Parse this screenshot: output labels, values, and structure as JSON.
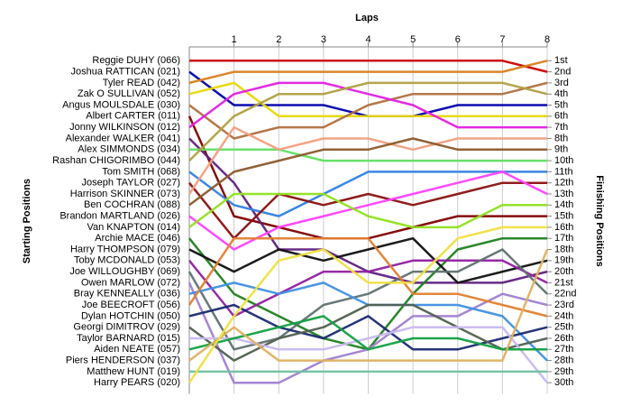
{
  "chart_data": {
    "type": "bump",
    "title": "Laps",
    "y_label": "Starting Positions",
    "y2_label": "Finishing Positions",
    "x": [
      0,
      1,
      2,
      3,
      4,
      5,
      6,
      7,
      8
    ],
    "xlim": [
      0,
      8
    ],
    "xticks": [
      1,
      2,
      3,
      4,
      5,
      6,
      7,
      8
    ],
    "ylim": [
      0,
      31
    ],
    "y2lim": [
      0,
      31
    ],
    "y_inverted": true,
    "grid": true,
    "y2ticks": [
      {
        "value": 1,
        "label": "1st"
      },
      {
        "value": 2,
        "label": "2nd"
      },
      {
        "value": 3,
        "label": "3rd"
      },
      {
        "value": 4,
        "label": "4th"
      },
      {
        "value": 5,
        "label": "5th"
      },
      {
        "value": 6,
        "label": "6th"
      },
      {
        "value": 7,
        "label": "7th"
      },
      {
        "value": 8,
        "label": "8th"
      },
      {
        "value": 9,
        "label": "9th"
      },
      {
        "value": 10,
        "label": "10th"
      },
      {
        "value": 11,
        "label": "11th"
      },
      {
        "value": 12,
        "label": "12th"
      },
      {
        "value": 13,
        "label": "13th"
      },
      {
        "value": 14,
        "label": "14th"
      },
      {
        "value": 15,
        "label": "15th"
      },
      {
        "value": 16,
        "label": "16th"
      },
      {
        "value": 17,
        "label": "17th"
      },
      {
        "value": 18,
        "label": "18th"
      },
      {
        "value": 19,
        "label": "19th"
      },
      {
        "value": 20,
        "label": "20th"
      },
      {
        "value": 21,
        "label": "21st"
      },
      {
        "value": 22,
        "label": "22nd"
      },
      {
        "value": 23,
        "label": "23rd"
      },
      {
        "value": 24,
        "label": "24th"
      },
      {
        "value": 25,
        "label": "25th"
      },
      {
        "value": 26,
        "label": "26th"
      },
      {
        "value": 27,
        "label": "27th"
      },
      {
        "value": 28,
        "label": "28th"
      },
      {
        "value": 29,
        "label": "29th"
      },
      {
        "value": 30,
        "label": "30th"
      }
    ],
    "series": [
      {
        "name": "Reggie DUHY (066)",
        "color": "#cc0000",
        "values": [
          1,
          1,
          1,
          1,
          1,
          1,
          1,
          1,
          2
        ]
      },
      {
        "name": "Joshua RATTICAN (021)",
        "color": "#0000aa",
        "values": [
          2,
          5,
          5,
          5,
          6,
          6,
          5,
          5,
          5
        ]
      },
      {
        "name": "Tyler READ (042)",
        "color": "#d98020",
        "values": [
          3,
          2,
          2,
          2,
          2,
          2,
          2,
          2,
          1
        ]
      },
      {
        "name": "Zak O SULLIVAN (052)",
        "color": "#e8d800",
        "values": [
          4,
          3,
          6,
          6,
          6,
          6,
          6,
          6,
          6
        ]
      },
      {
        "name": "Angus MOULSDALE (030)",
        "color": "#b07040",
        "values": [
          5,
          8,
          7,
          7,
          5,
          4,
          4,
          4,
          3
        ]
      },
      {
        "name": "Albert CARTER (011)",
        "color": "#800000",
        "values": [
          6,
          15,
          16,
          17,
          17,
          16,
          15,
          15,
          15
        ]
      },
      {
        "name": "Jonny WILKINSON (012)",
        "color": "#e020e0",
        "values": [
          7,
          4,
          3,
          3,
          4,
          5,
          7,
          7,
          7
        ]
      },
      {
        "name": "Alexander WALKER (041)",
        "color": "#602080",
        "values": [
          8,
          12,
          18,
          18,
          20,
          21,
          21,
          21,
          20
        ]
      },
      {
        "name": "Alex SIMMONDS (034)",
        "color": "#60e060",
        "values": [
          9,
          9,
          9,
          10,
          10,
          10,
          10,
          10,
          10
        ]
      },
      {
        "name": "Rashan CHIGORIMBO (044)",
        "color": "#b0a040",
        "values": [
          10,
          6,
          4,
          4,
          3,
          3,
          3,
          3,
          4
        ]
      },
      {
        "name": "Tom SMITH (068)",
        "color": "#3080e0",
        "values": [
          11,
          14,
          15,
          13,
          11,
          11,
          11,
          11,
          11
        ]
      },
      {
        "name": "Joseph TAYLOR (027)",
        "color": "#8b1010",
        "values": [
          12,
          17,
          13,
          14,
          13,
          14,
          13,
          12,
          12
        ]
      },
      {
        "name": "Harrison SKINNER (073)",
        "color": "#f0a080",
        "values": [
          13,
          7,
          9,
          8,
          8,
          9,
          8,
          8,
          8
        ]
      },
      {
        "name": "Ben COCHRAN (088)",
        "color": "#8b5a2b",
        "values": [
          14,
          11,
          10,
          9,
          9,
          8,
          9,
          9,
          9
        ]
      },
      {
        "name": "Brandon MARTLAND (026)",
        "color": "#ff40ff",
        "values": [
          15,
          18,
          16,
          15,
          14,
          13,
          12,
          11,
          13
        ]
      },
      {
        "name": "Van KNAPTON (014)",
        "color": "#90e020",
        "values": [
          16,
          13,
          13,
          13,
          15,
          16,
          16,
          14,
          14
        ]
      },
      {
        "name": "Archie MACE (046)",
        "color": "#208020",
        "values": [
          17,
          22,
          24,
          26,
          27,
          22,
          18,
          17,
          17
        ]
      },
      {
        "name": "Harry THOMPSON (079)",
        "color": "#101010",
        "values": [
          18,
          20,
          18,
          19,
          18,
          17,
          21,
          20,
          19
        ]
      },
      {
        "name": "Toby MCDONALD (053)",
        "color": "#9020a0",
        "values": [
          19,
          24,
          22,
          20,
          20,
          19,
          19,
          19,
          21
        ]
      },
      {
        "name": "Joe WILLOUGHBY (069)",
        "color": "#607070",
        "values": [
          20,
          27,
          26,
          23,
          22,
          20,
          20,
          18,
          22
        ]
      },
      {
        "name": "Owen MARLOW (072)",
        "color": "#a080d0",
        "values": [
          21,
          30,
          30,
          28,
          27,
          24,
          24,
          22,
          23
        ]
      },
      {
        "name": "Bray KENNEALLY (036)",
        "color": "#4090e0",
        "values": [
          22,
          21,
          22,
          21,
          23,
          23,
          23,
          24,
          28
        ]
      },
      {
        "name": "Joe BEECROFT (056)",
        "color": "#e08030",
        "values": [
          23,
          17,
          17,
          17,
          17,
          22,
          22,
          23,
          24
        ]
      },
      {
        "name": "Dylan HOTCHIN (050)",
        "color": "#1a2a70",
        "values": [
          24,
          23,
          25,
          26,
          24,
          27,
          27,
          26,
          25
        ]
      },
      {
        "name": "Georgi DIMITROV (029)",
        "color": "#506050",
        "values": [
          25,
          28,
          26,
          25,
          23,
          23,
          25,
          27,
          26
        ]
      },
      {
        "name": "Taylor BARNARD (015)",
        "color": "#c8b8f0",
        "values": [
          26,
          26,
          27,
          27,
          26,
          25,
          25,
          25,
          30
        ]
      },
      {
        "name": "Aiden NEATE (057)",
        "color": "#10a040",
        "values": [
          27,
          26,
          25,
          24,
          27,
          26,
          26,
          27,
          27
        ]
      },
      {
        "name": "Piers HENDERSON (037)",
        "color": "#e0b060",
        "values": [
          28,
          25,
          28,
          28,
          28,
          28,
          28,
          28,
          18
        ]
      },
      {
        "name": "Matthew HUNT (019)",
        "color": "#70c0a0",
        "values": [
          29,
          29,
          29,
          29,
          29,
          29,
          29,
          29,
          29
        ]
      },
      {
        "name": "Harry PEARS (020)",
        "color": "#f0e040",
        "values": [
          30,
          24,
          19,
          18,
          21,
          21,
          17,
          16,
          16
        ]
      }
    ]
  }
}
